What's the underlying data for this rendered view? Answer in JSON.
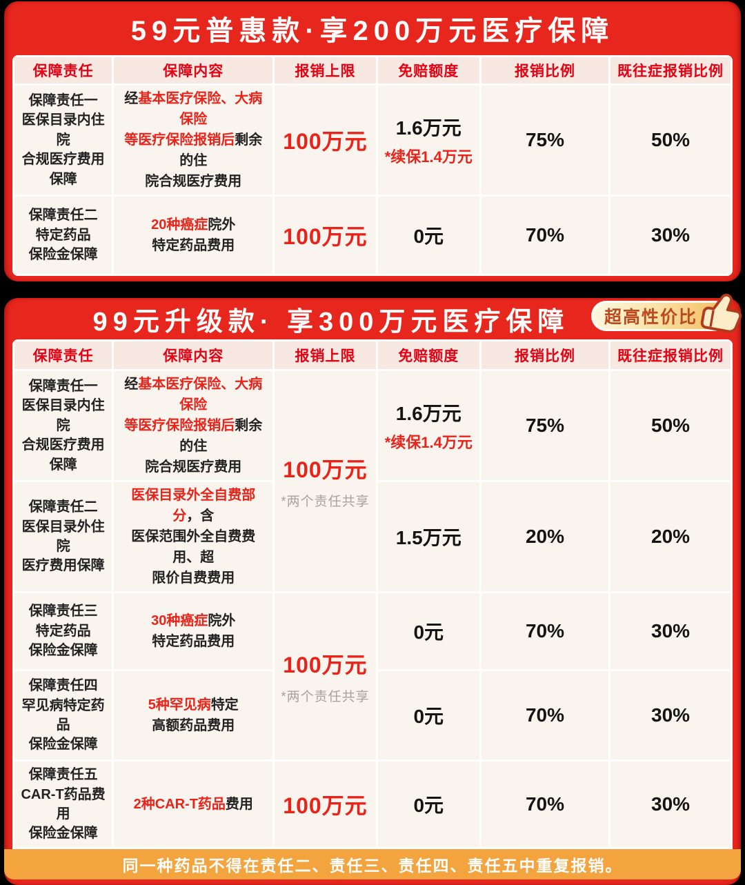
{
  "colors": {
    "card_red": "#e7261d",
    "accent_red": "#e8231a",
    "header_text_red": "#e60013",
    "cell_bg": "#faf4ee",
    "header_cell_bg": "#f7e9e1",
    "note_orange": "#f3a43e",
    "badge_text": "#bc491d",
    "gray_note": "#a8a29d"
  },
  "tables": [
    {
      "title": "59元普惠款·享200万元医疗保障",
      "columns": [
        "保障责任",
        "保障内容",
        "报销上限",
        "免赔额度",
        "报销比例",
        "既往症报销比例"
      ],
      "rows": [
        {
          "liability": [
            "保障责任一",
            "医保目录内住院",
            "合规医疗费用保障"
          ],
          "content": [
            {
              "text": "经",
              "style": "dark"
            },
            {
              "text": "基本医疗保险、大病保险\n等医疗保险报销后",
              "style": "red"
            },
            {
              "text": "剩余的住\n院合规医疗费用",
              "style": "dark"
            }
          ],
          "limit": "100万元",
          "deductible_main": "1.6万元",
          "deductible_note": "*续保1.4万元",
          "ratio": "75%",
          "preexisting_ratio": "50%"
        },
        {
          "liability": [
            "保障责任二",
            "特定药品",
            "保险金保障"
          ],
          "content": [
            {
              "text": "20种癌症",
              "style": "red"
            },
            {
              "text": "院外\n特定药品费用",
              "style": "dark"
            }
          ],
          "limit": "100万元",
          "deductible_main": "0元",
          "deductible_note": "",
          "ratio": "70%",
          "preexisting_ratio": "30%"
        }
      ]
    },
    {
      "title": "99元升级款· 享300万元医疗保障",
      "badge": {
        "label": "超高性价比",
        "icon": "thumbs-up-icon"
      },
      "columns": [
        "保障责任",
        "保障内容",
        "报销上限",
        "免赔额度",
        "报销比例",
        "既往症报销比例"
      ],
      "limit_groups": [
        {
          "value": "100万元",
          "note": "*两个责任共享"
        },
        {
          "value": "100万元",
          "note": "*两个责任共享"
        },
        {
          "value": "100万元",
          "note": ""
        }
      ],
      "rows": [
        {
          "liability": [
            "保障责任一",
            "医保目录内住院",
            "合规医疗费用保障"
          ],
          "content": [
            {
              "text": "经",
              "style": "dark"
            },
            {
              "text": "基本医疗保险、大病保险\n等医疗保险报销后",
              "style": "red"
            },
            {
              "text": "剩余的住\n院合规医疗费用",
              "style": "dark"
            }
          ],
          "deductible_main": "1.6万元",
          "deductible_note": "*续保1.4万元",
          "ratio": "75%",
          "preexisting_ratio": "50%"
        },
        {
          "liability": [
            "保障责任二",
            "医保目录外住院",
            "医疗费用保障"
          ],
          "content": [
            {
              "text": "医保目录外全自费部分",
              "style": "red"
            },
            {
              "text": "，含\n医保范围外全自费费用、超\n限价自费费用",
              "style": "dark"
            }
          ],
          "deductible_main": "1.5万元",
          "deductible_note": "",
          "ratio": "20%",
          "preexisting_ratio": "20%"
        },
        {
          "liability": [
            "保障责任三",
            "特定药品",
            "保险金保障"
          ],
          "content": [
            {
              "text": "30种癌症",
              "style": "red"
            },
            {
              "text": "院外\n特定药品费用",
              "style": "dark"
            }
          ],
          "deductible_main": "0元",
          "deductible_note": "",
          "ratio": "70%",
          "preexisting_ratio": "30%"
        },
        {
          "liability": [
            "保障责任四",
            "罕见病特定药品",
            "保险金保障"
          ],
          "content": [
            {
              "text": "5种罕见病",
              "style": "red"
            },
            {
              "text": "特定\n高额药品费用",
              "style": "dark"
            }
          ],
          "deductible_main": "0元",
          "deductible_note": "",
          "ratio": "70%",
          "preexisting_ratio": "30%"
        },
        {
          "liability": [
            "保障责任五",
            "CAR-T药品费用",
            "保险金保障"
          ],
          "content": [
            {
              "text": "2种CAR-T药品",
              "style": "red"
            },
            {
              "text": "费用",
              "style": "dark"
            }
          ],
          "deductible_main": "0元",
          "deductible_note": "",
          "ratio": "70%",
          "preexisting_ratio": "30%"
        }
      ],
      "footnote": "同一种药品不得在责任二、责任三、责任四、责任五中重复报销。"
    }
  ]
}
